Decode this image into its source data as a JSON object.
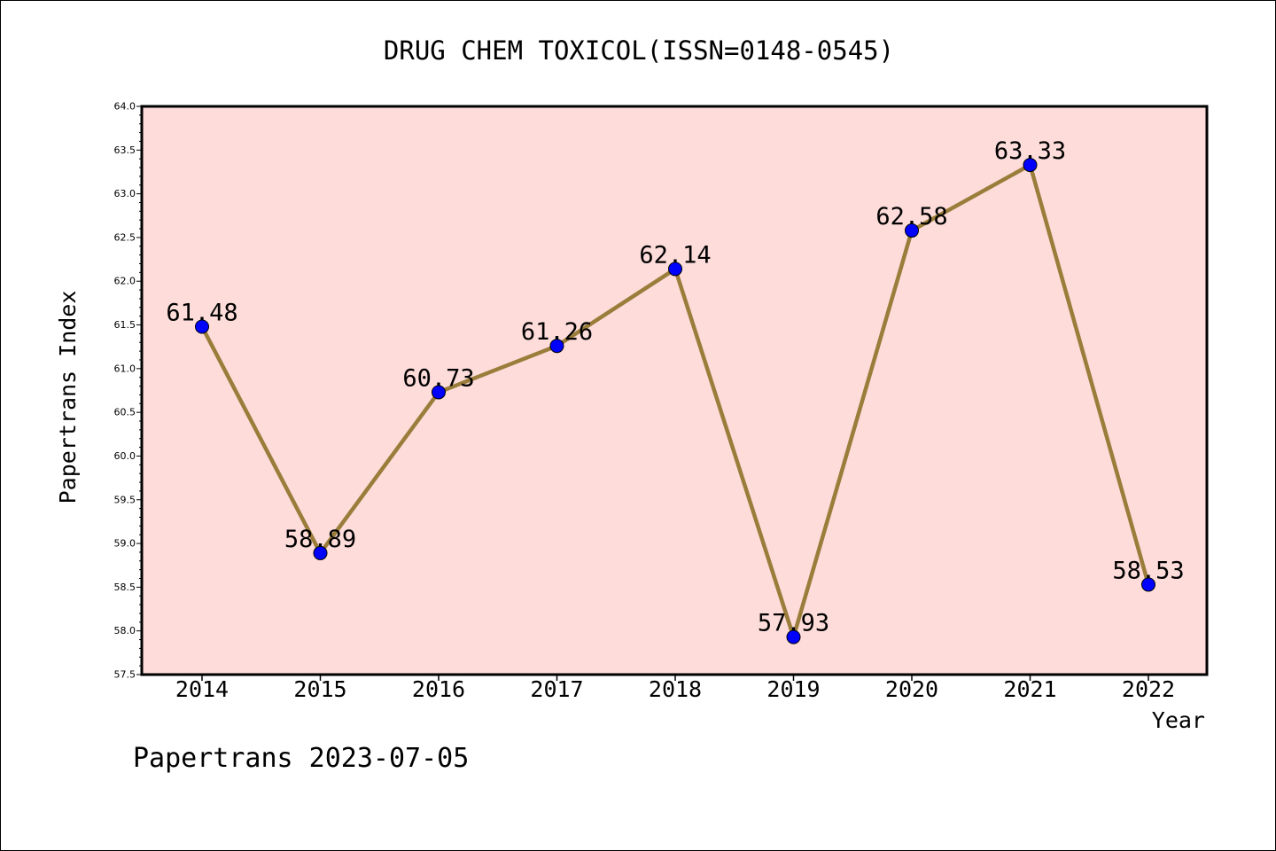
{
  "chart_data": {
    "type": "line",
    "title": "DRUG CHEM TOXICOL(ISSN=0148-0545)",
    "xlabel": "Year",
    "ylabel": "Papertrans Index",
    "categories": [
      "2014",
      "2015",
      "2016",
      "2017",
      "2018",
      "2019",
      "2020",
      "2021",
      "2022"
    ],
    "values": [
      61.48,
      58.89,
      60.73,
      61.26,
      62.14,
      57.93,
      62.58,
      63.33,
      58.53
    ],
    "data_labels": [
      "61.48",
      "58.89",
      "60.73",
      "61.26",
      "62.14",
      "57.93",
      "62.58",
      "63.33",
      "58.53"
    ],
    "ylim": [
      57.5,
      64.0
    ],
    "y_ticks": [
      "57.5",
      "58.0",
      "58.5",
      "59.0",
      "59.5",
      "60.0",
      "60.5",
      "61.0",
      "61.5",
      "62.0",
      "62.5",
      "63.0",
      "63.5",
      "64.0"
    ],
    "grid": false,
    "colors": {
      "plot_background": "#fddcda",
      "line": "#9a7d3a",
      "marker": "#0000ff"
    }
  },
  "footer": {
    "watermark": "Papertrans 2023-07-05"
  }
}
